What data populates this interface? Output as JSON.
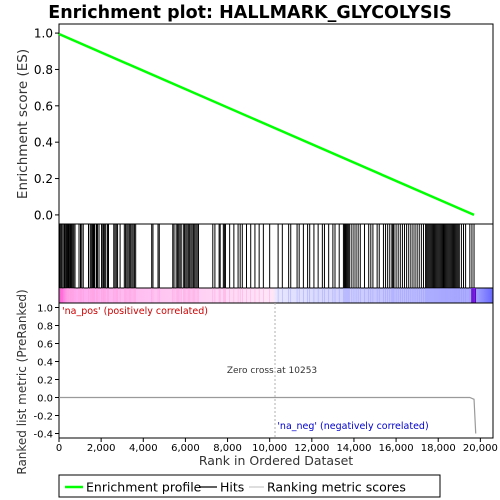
{
  "title": "Enrichment plot: HALLMARK_GLYCOLYSIS",
  "chart_data": [
    {
      "type": "line",
      "name": "enrichment-profile",
      "ylabel": "Enrichment score (ES)",
      "xlim": [
        0,
        20600
      ],
      "ylim": [
        -0.05,
        1.05
      ],
      "yticks": [
        0.0,
        0.2,
        0.4,
        0.6,
        0.8,
        1.0
      ],
      "yticklabels": [
        "0.0",
        "0.2",
        "0.4",
        "0.6",
        "0.8",
        "1.0"
      ],
      "grid": false,
      "color": "#00ff00",
      "x": [
        0,
        19700
      ],
      "y": [
        0.995,
        0.0
      ]
    },
    {
      "type": "hits",
      "name": "hits",
      "color": "#000000",
      "positions": [
        40,
        90,
        140,
        200,
        260,
        300,
        350,
        390,
        430,
        470,
        520,
        560,
        600,
        650,
        700,
        760,
        950,
        1020,
        1080,
        1150,
        1400,
        1480,
        1530,
        1580,
        1620,
        1660,
        1700,
        1780,
        1830,
        1900,
        2020,
        2080,
        2120,
        2170,
        2220,
        2300,
        2350,
        2600,
        2660,
        2720,
        2780,
        2900,
        3100,
        3160,
        3220,
        3280,
        3340,
        3400,
        3460,
        3520,
        3580,
        3640,
        4400,
        4460,
        4700,
        4760,
        5400,
        5460,
        5560,
        5620,
        5680,
        5740,
        5800,
        5900,
        5960,
        6020,
        6080,
        6140,
        6200,
        6260,
        6320,
        6380,
        6440,
        6500,
        6560,
        6620,
        7300,
        7400,
        7600,
        7650,
        7800,
        7850,
        7900,
        8100,
        8300,
        8500,
        8600,
        8700,
        8900,
        9100,
        9300,
        9500,
        9700,
        10000,
        10400,
        10600,
        10900,
        11000,
        11300,
        11400,
        11600,
        11800,
        11900,
        12100,
        12300,
        12500,
        12600,
        12800,
        13000,
        13100,
        13300,
        13500,
        13550,
        13600,
        13650,
        13700,
        13750,
        13800,
        13900,
        14000,
        14100,
        14200,
        14300,
        14500,
        14700,
        14800,
        14900,
        15100,
        15200,
        15400,
        15500,
        15600,
        15700,
        15800,
        15850,
        15900,
        16000,
        16100,
        16200,
        16300,
        16400,
        16500,
        16600,
        16700,
        16800,
        16900,
        17000,
        17100,
        17200,
        17300,
        17400,
        17450,
        17500,
        17550,
        17600,
        17650,
        17700,
        17750,
        17800,
        17850,
        17900,
        17950,
        18000,
        18050,
        18100,
        18150,
        18200,
        18250,
        18300,
        18350,
        18400,
        18450,
        18500,
        18550,
        18600,
        18650,
        18700,
        18750,
        18800,
        18850,
        18900,
        18950,
        19000,
        19100,
        19200,
        19300,
        19500,
        19600,
        19700
      ]
    },
    {
      "type": "heatmap",
      "name": "ranking-colorbar",
      "x": [
        0,
        10253,
        19700
      ],
      "colors": [
        "#ff33cc",
        "#ffffff",
        "#6666ff"
      ],
      "end_marker_color": "#6600cc"
    },
    {
      "type": "area",
      "name": "ranked-list-metric",
      "xlabel": "Rank in Ordered Dataset",
      "ylabel": "Ranked list metric (PreRanked)",
      "xlim": [
        0,
        20600
      ],
      "ylim": [
        -0.45,
        1.05
      ],
      "xticks": [
        0,
        2000,
        4000,
        6000,
        8000,
        10000,
        12000,
        14000,
        16000,
        18000,
        20000
      ],
      "xticklabels": [
        "0",
        "2,000",
        "4,000",
        "6,000",
        "8,000",
        "10,000",
        "12,000",
        "14,000",
        "16,000",
        "18,000",
        "20,000"
      ],
      "yticks": [
        -0.4,
        -0.2,
        0.0,
        0.2,
        0.4,
        0.6,
        0.8,
        1.0
      ],
      "yticklabels": [
        "-0.4",
        "-0.2",
        "0.0",
        "0.2",
        "0.4",
        "0.6",
        "0.8",
        "1.0"
      ],
      "grid": false,
      "x": [
        0,
        19500,
        19700,
        19780
      ],
      "y": [
        0.0,
        0.0,
        -0.02,
        -0.4
      ],
      "zero_cross": 10253,
      "zero_cross_label": "Zero cross at 10253",
      "pos_label": "'na_pos' (positively correlated)",
      "neg_label": "'na_neg' (negatively correlated)"
    }
  ],
  "legend": {
    "placement": "bottom",
    "items": [
      {
        "label": "Enrichment profile",
        "color": "#00ff00"
      },
      {
        "label": "Hits",
        "color": "#000000"
      },
      {
        "label": "Ranking metric scores",
        "color": "#cccccc"
      }
    ]
  },
  "colors": {
    "pos_text": "#cc0000",
    "neg_text": "#0000cc",
    "zero_line": "#b0b0b0"
  }
}
